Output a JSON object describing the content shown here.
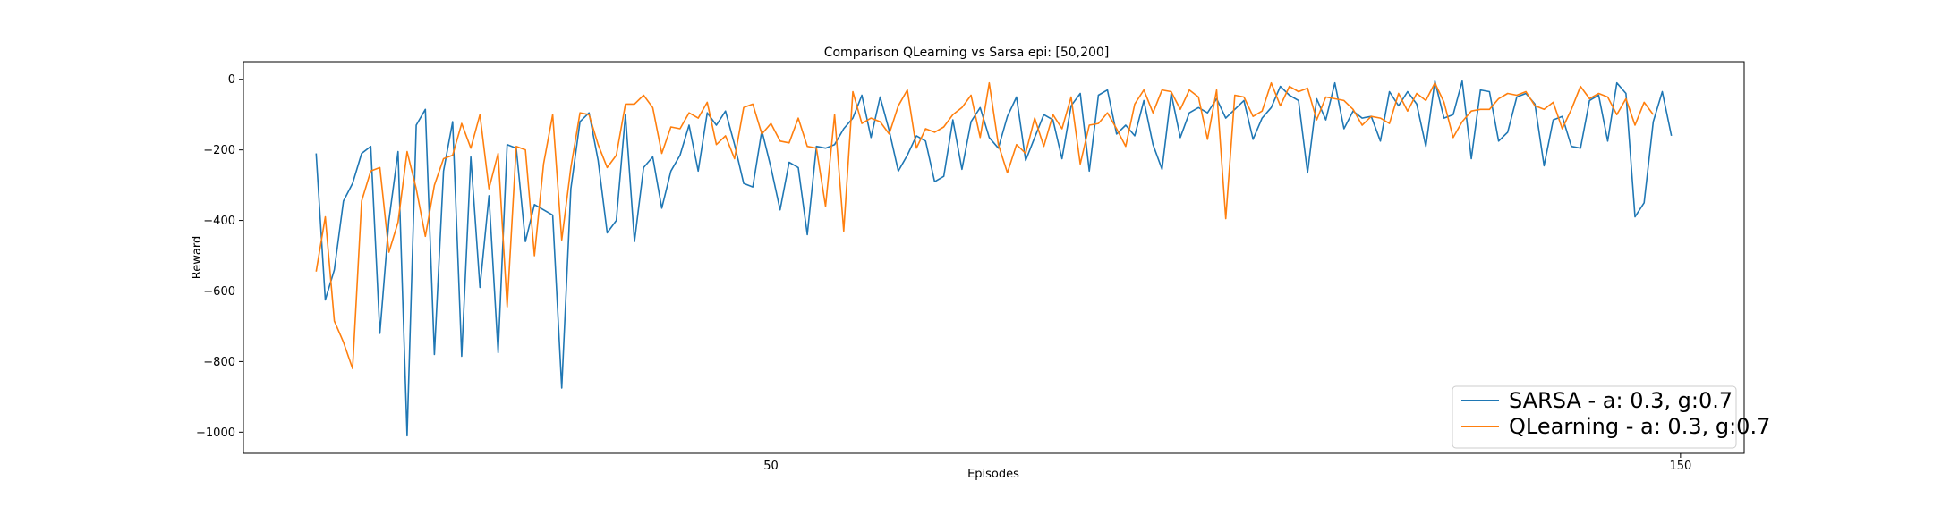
{
  "chart_data": {
    "type": "line",
    "title": "Comparison QLearning vs Sarsa epi: [50,200]",
    "xlabel": "Episodes",
    "ylabel": "Reward",
    "xlim": [
      -8,
      157
    ],
    "ylim": [
      -1060,
      50
    ],
    "xticks": [
      50,
      150
    ],
    "yticks": [
      0,
      -200,
      -400,
      -600,
      -800,
      -1000
    ],
    "grid": false,
    "legend_position": "lower-right",
    "x_start": 0,
    "series": [
      {
        "name": "SARSA - a: 0.3, g:0.7",
        "color": "#1f77b4",
        "values": [
          -210,
          -625,
          -540,
          -345,
          -295,
          -210,
          -190,
          -720,
          -400,
          -205,
          -1010,
          -130,
          -85,
          -780,
          -260,
          -120,
          -785,
          -220,
          -590,
          -330,
          -775,
          -185,
          -195,
          -460,
          -355,
          -370,
          -385,
          -875,
          -310,
          -120,
          -95,
          -230,
          -435,
          -400,
          -100,
          -460,
          -250,
          -220,
          -365,
          -260,
          -215,
          -130,
          -260,
          -95,
          -130,
          -90,
          -185,
          -295,
          -305,
          -145,
          -250,
          -370,
          -235,
          -250,
          -440,
          -190,
          -195,
          -185,
          -140,
          -110,
          -45,
          -165,
          -50,
          -145,
          -260,
          -215,
          -160,
          -175,
          -290,
          -275,
          -115,
          -255,
          -120,
          -80,
          -165,
          -195,
          -105,
          -50,
          -230,
          -165,
          -100,
          -115,
          -225,
          -75,
          -40,
          -260,
          -45,
          -30,
          -155,
          -130,
          -160,
          -60,
          -185,
          -255,
          -40,
          -165,
          -95,
          -80,
          -95,
          -55,
          -110,
          -85,
          -60,
          -170,
          -110,
          -80,
          -20,
          -45,
          -60,
          -265,
          -55,
          -115,
          -10,
          -140,
          -90,
          -110,
          -105,
          -175,
          -35,
          -75,
          -35,
          -70,
          -190,
          -5,
          -110,
          -100,
          -5,
          -225,
          -30,
          -35,
          -175,
          -150,
          -50,
          -40,
          -70,
          -245,
          -115,
          -105,
          -190,
          -195,
          -60,
          -45,
          -175,
          -10,
          -40,
          -390,
          -350,
          -120,
          -35,
          -160
        ]
      },
      {
        "name": "QLearning - a: 0.3, g:0.7",
        "color": "#ff7f0e",
        "values": [
          -545,
          -390,
          -685,
          -745,
          -820,
          -345,
          -260,
          -250,
          -490,
          -405,
          -205,
          -310,
          -445,
          -300,
          -225,
          -215,
          -125,
          -195,
          -100,
          -310,
          -210,
          -645,
          -190,
          -200,
          -500,
          -240,
          -100,
          -455,
          -250,
          -95,
          -100,
          -185,
          -250,
          -215,
          -70,
          -70,
          -45,
          -80,
          -210,
          -135,
          -140,
          -95,
          -110,
          -65,
          -185,
          -160,
          -225,
          -80,
          -70,
          -155,
          -125,
          -175,
          -180,
          -110,
          -190,
          -195,
          -360,
          -100,
          -430,
          -35,
          -125,
          -110,
          -120,
          -155,
          -75,
          -30,
          -195,
          -140,
          -150,
          -135,
          -100,
          -80,
          -45,
          -165,
          -10,
          -185,
          -265,
          -185,
          -210,
          -110,
          -190,
          -100,
          -140,
          -50,
          -240,
          -130,
          -125,
          -95,
          -140,
          -190,
          -70,
          -30,
          -95,
          -30,
          -35,
          -85,
          -30,
          -50,
          -170,
          -30,
          -395,
          -45,
          -50,
          -105,
          -90,
          -10,
          -75,
          -20,
          -35,
          -25,
          -115,
          -50,
          -55,
          -60,
          -85,
          -130,
          -105,
          -110,
          -125,
          -40,
          -90,
          -40,
          -60,
          -10,
          -65,
          -165,
          -120,
          -90,
          -85,
          -85,
          -55,
          -40,
          -45,
          -35,
          -75,
          -85,
          -65,
          -140,
          -85,
          -20,
          -55,
          -40,
          -50,
          -100,
          -55,
          -130,
          -65,
          -100
        ]
      }
    ]
  }
}
